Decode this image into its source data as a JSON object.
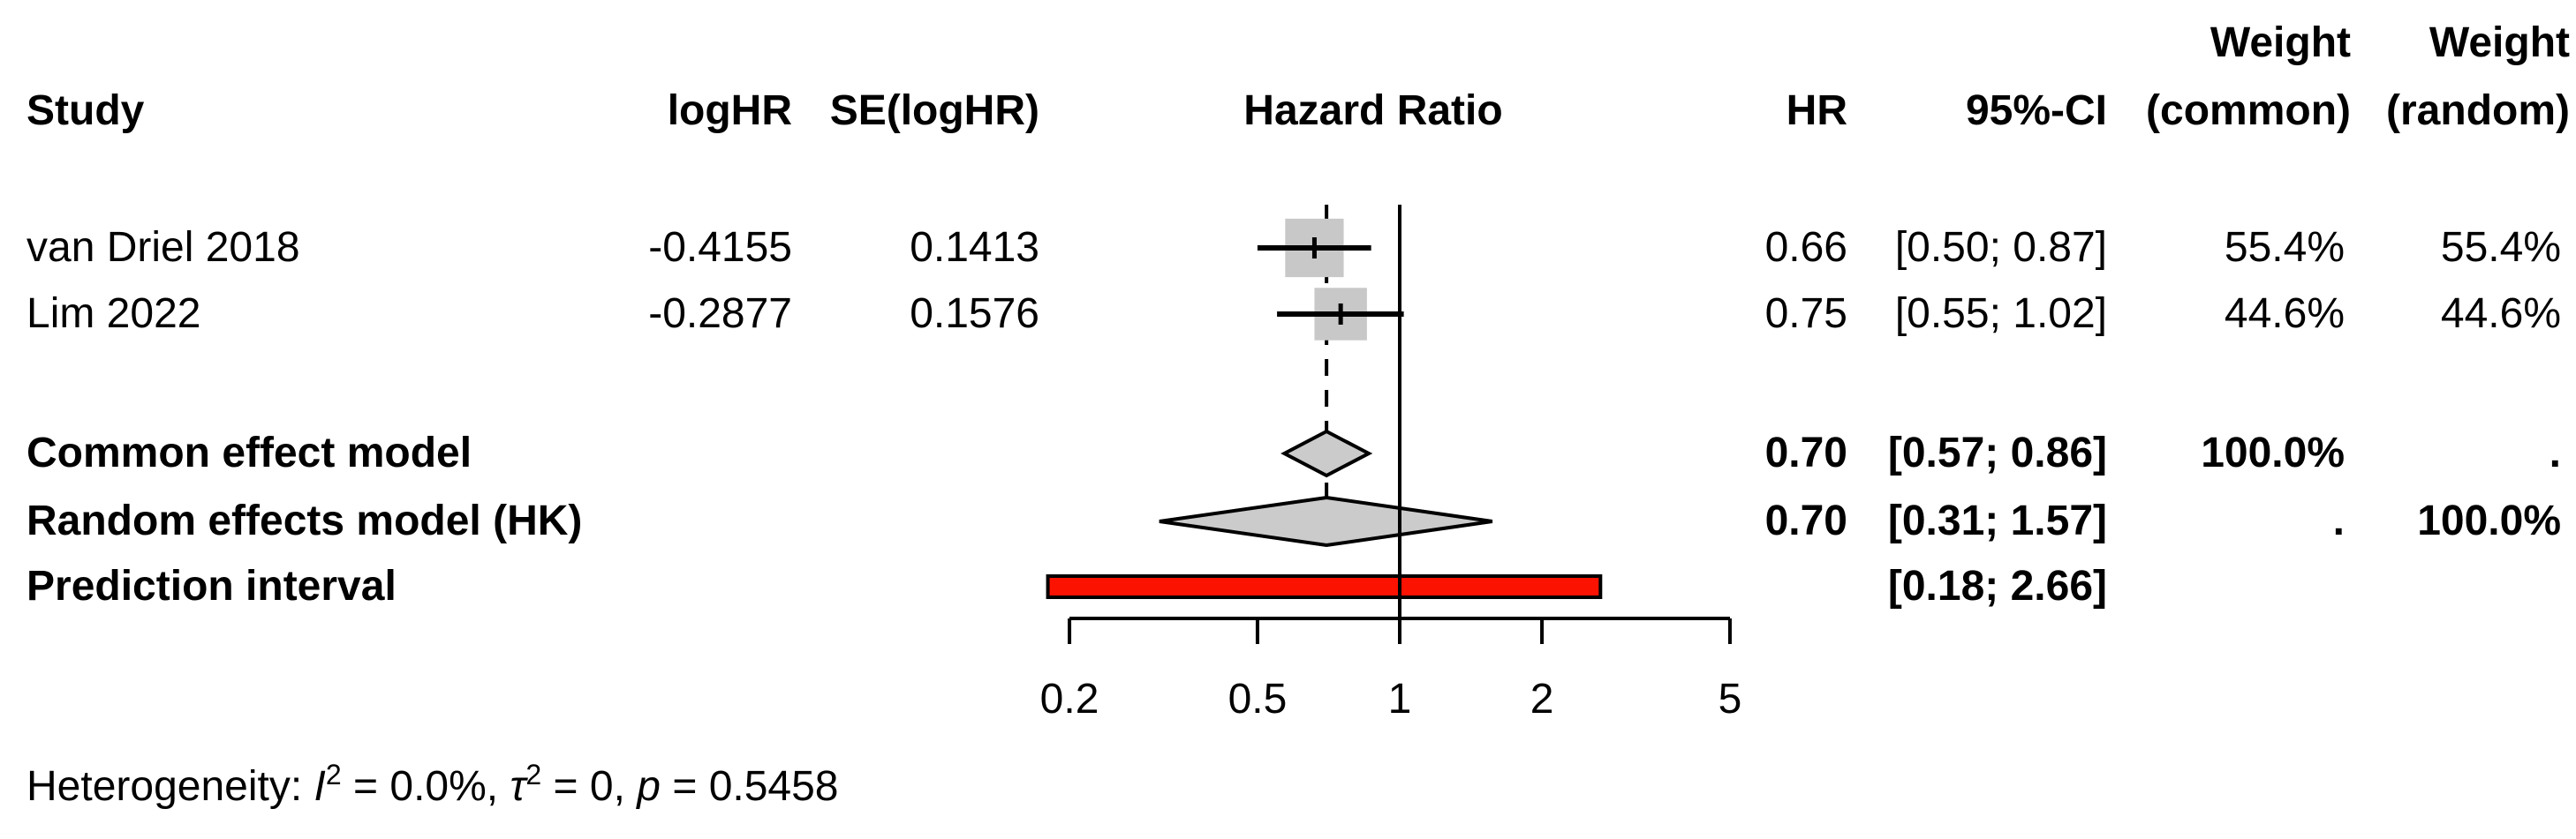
{
  "header": {
    "study": "Study",
    "loghr": "logHR",
    "se": "SE(logHR)",
    "hazard_ratio": "Hazard Ratio",
    "hr": "HR",
    "ci": "95%-CI",
    "weight": "Weight",
    "common": "(common)",
    "random": "(random)"
  },
  "colors": {
    "marker_fill": "#c8c8c8",
    "diamond_fill": "#cbcbcb",
    "prediction_fill": "#fb1200",
    "line": "#000000",
    "background": "#ffffff"
  },
  "chart_data": {
    "type": "forest",
    "effect_measure": "Hazard Ratio",
    "scale": "log10",
    "studies": [
      {
        "study": "van Driel 2018",
        "logHR": "-0.4155",
        "SE": "0.1413",
        "hr": 0.66,
        "ci_lower": 0.5,
        "ci_upper": 0.87,
        "hr_text": "0.66",
        "ci_text": "[0.50; 0.87]",
        "weight_common": "55.4%",
        "weight_random": "55.4%",
        "weight_pct": 55.4
      },
      {
        "study": "Lim 2022",
        "logHR": "-0.2877",
        "SE": "0.1576",
        "hr": 0.75,
        "ci_lower": 0.55,
        "ci_upper": 1.02,
        "hr_text": "0.75",
        "ci_text": "[0.55; 1.02]",
        "weight_common": "44.6%",
        "weight_random": "44.6%",
        "weight_pct": 44.6
      }
    ],
    "summaries": [
      {
        "label": "Common effect model",
        "hr": 0.7,
        "ci_lower": 0.57,
        "ci_upper": 0.86,
        "hr_text": "0.70",
        "ci_text": "[0.57; 0.86]",
        "weight_common": "100.0%",
        "weight_random": "."
      },
      {
        "label": "Random effects model (HK)",
        "hr": 0.7,
        "ci_lower": 0.31,
        "ci_upper": 1.57,
        "hr_text": "0.70",
        "ci_text": "[0.31; 1.57]",
        "weight_common": ".",
        "weight_random": "100.0%"
      }
    ],
    "prediction_interval": {
      "label": "Prediction interval",
      "ci_lower": 0.18,
      "ci_upper": 2.66,
      "ci_text": "[0.18; 2.66]"
    },
    "axis": {
      "ticks": [
        0.2,
        0.5,
        1,
        2,
        5
      ],
      "tick_labels": [
        "0.2",
        "0.5",
        "1",
        "2",
        "5"
      ],
      "reference_line": 1,
      "dashed_line": 0.7,
      "range": [
        0.2,
        5
      ]
    },
    "footer": {
      "plain": "Heterogeneity: I2 = 0.0%, t2 = 0, p = 0.5458",
      "segments": [
        {
          "t": "Heterogeneity: "
        },
        {
          "t": "I",
          "i": true
        },
        {
          "t": "2",
          "sup": true
        },
        {
          "t": " = 0.0%, "
        },
        {
          "t": "τ",
          "i": true
        },
        {
          "t": "2",
          "sup": true
        },
        {
          "t": " = 0, "
        },
        {
          "t": "p",
          "i": true
        },
        {
          "t": " = 0.5458"
        }
      ]
    }
  }
}
